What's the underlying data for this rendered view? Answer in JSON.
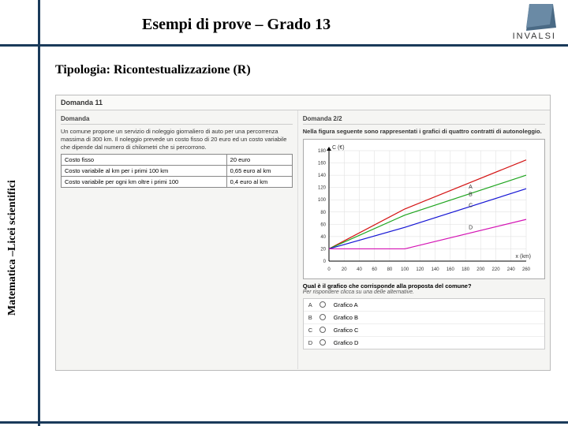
{
  "header": "Esempi di prove – Grado 13",
  "logo_text": "INVALSI",
  "sidelabel": "Matematica –Licei scientifici",
  "subtitle": "Tipologia: Ricontestualizzazione (R)",
  "domanda_title": "Domanda 11",
  "left": {
    "label": "Domanda",
    "text1": "Un comune propone un servizio di noleggio giornaliero di auto per una percorrenza massima di 300 km. Il noleggio prevede un costo fisso di 20 euro ed un costo variabile che dipende dal numero di chilometri che si percorrono.",
    "table": {
      "rows": [
        [
          "Costo fisso",
          "20 euro"
        ],
        [
          "Costo variabile al km per i primi 100 km",
          "0,65 euro al km"
        ],
        [
          "Costo variabile per ogni km oltre i primi 100",
          "0,4 euro al km"
        ]
      ]
    }
  },
  "right": {
    "label": "Domanda 2/2",
    "text1": "Nella figura seguente sono rappresentati i grafici di quattro contratti di autonoleggio.",
    "chart": {
      "ylabel": "C (€)",
      "xlabel": "x (km)",
      "xmin": 0,
      "xmax": 260,
      "xstep": 20,
      "ymin": 0,
      "ymax": 180,
      "ystep": 20,
      "series": [
        {
          "name": "A",
          "color": "#d41414",
          "points": [
            [
              0,
              20
            ],
            [
              100,
              85
            ],
            [
              260,
              165
            ]
          ],
          "label_pos": [
            180,
            118
          ]
        },
        {
          "name": "B",
          "color": "#1fa51f",
          "points": [
            [
              0,
              20
            ],
            [
              100,
              75
            ],
            [
              260,
              140
            ]
          ],
          "label_pos": [
            180,
            106
          ]
        },
        {
          "name": "C",
          "color": "#1414d4",
          "points": [
            [
              0,
              20
            ],
            [
              100,
              55
            ],
            [
              260,
              118
            ]
          ],
          "label_pos": [
            180,
            88
          ]
        },
        {
          "name": "D",
          "color": "#d414b4",
          "points": [
            [
              0,
              20
            ],
            [
              100,
              20
            ],
            [
              260,
              68
            ]
          ],
          "label_pos": [
            180,
            52
          ]
        }
      ]
    },
    "question": "Qual è il grafico che corrisponde alla proposta del comune?",
    "hint": "Per rispondere clicca su una delle alternative.",
    "answers": [
      {
        "letter": "A",
        "text": "Grafico A"
      },
      {
        "letter": "B",
        "text": "Grafico B"
      },
      {
        "letter": "C",
        "text": "Grafico C"
      },
      {
        "letter": "D",
        "text": "Grafico D"
      }
    ]
  }
}
